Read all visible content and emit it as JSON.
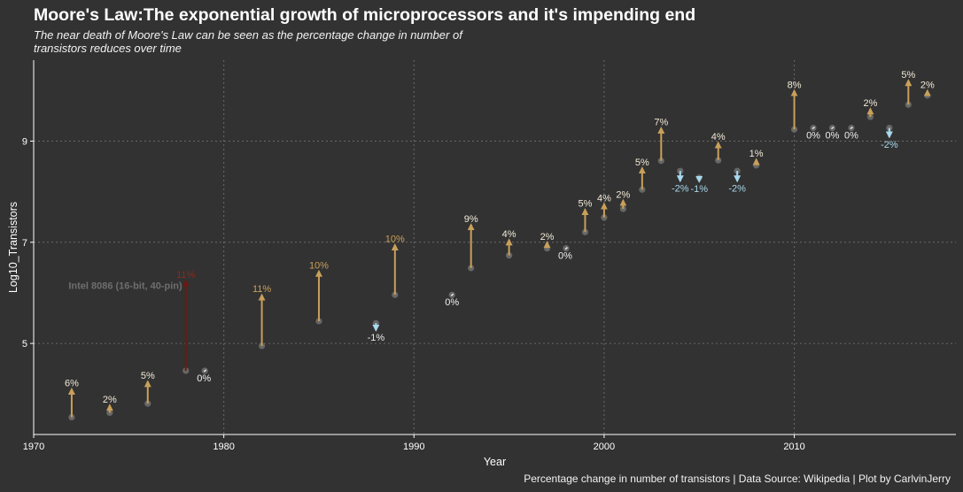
{
  "title": "Moore's Law:The exponential growth of microprocessors and it's impending end",
  "subtitle": "The near death of Moore's Law can be seen as the percentage change in number of transistors reduces over time",
  "caption": "Percentage change in number of transistors | Data Source: Wikipedia | Plot by CarlvinJerry",
  "chart_data": {
    "type": "scatter",
    "xlabel": "Year",
    "ylabel": "Log10_Transistors",
    "xlim": [
      1970,
      2018.5
    ],
    "ylim": [
      3.2,
      10.6
    ],
    "xticks": [
      1970,
      1980,
      1990,
      2000,
      2010
    ],
    "yticks": [
      5,
      7,
      9
    ],
    "grid": true,
    "annotation": {
      "text": "Intel 8086 (16-bit, 40-pin)",
      "x": 1978,
      "y": 6.15
    },
    "colors": {
      "background": "#323232",
      "point": "#666666",
      "increase": "#c8a05a",
      "decrease": "#a8d8ec",
      "intel": "#6b1a10",
      "grid": "#6a6a6a"
    },
    "points": [
      {
        "year": 1972,
        "from": 3.54,
        "to": 4.1,
        "label": "6%"
      },
      {
        "year": 1974,
        "from": 3.63,
        "to": 3.78,
        "label": "2%"
      },
      {
        "year": 1976,
        "from": 3.81,
        "to": 4.25,
        "label": "5%"
      },
      {
        "year": 1978,
        "from": 4.46,
        "to": 6.24,
        "label": "11%"
      },
      {
        "year": 1979,
        "from": 4.46,
        "to": 4.46,
        "label": "0%"
      },
      {
        "year": 1982,
        "from": 4.95,
        "to": 5.96,
        "label": "11%"
      },
      {
        "year": 1985,
        "from": 5.44,
        "to": 6.43,
        "label": "10%"
      },
      {
        "year": 1988,
        "from": 5.4,
        "to": 5.26,
        "label": "-1%"
      },
      {
        "year": 1989,
        "from": 5.96,
        "to": 6.95,
        "label": "10%"
      },
      {
        "year": 1992,
        "from": 5.96,
        "to": 5.96,
        "label": "0%"
      },
      {
        "year": 1993,
        "from": 6.49,
        "to": 7.35,
        "label": "9%"
      },
      {
        "year": 1995,
        "from": 6.74,
        "to": 7.05,
        "label": "4%"
      },
      {
        "year": 1997,
        "from": 6.88,
        "to": 7.0,
        "label": "2%"
      },
      {
        "year": 1998,
        "from": 6.88,
        "to": 6.88,
        "label": "0%"
      },
      {
        "year": 1999,
        "from": 7.2,
        "to": 7.65,
        "label": "5%"
      },
      {
        "year": 2000,
        "from": 7.49,
        "to": 7.76,
        "label": "4%"
      },
      {
        "year": 2001,
        "from": 7.66,
        "to": 7.83,
        "label": "2%"
      },
      {
        "year": 2002,
        "from": 8.04,
        "to": 8.47,
        "label": "5%"
      },
      {
        "year": 2003,
        "from": 8.61,
        "to": 9.26,
        "label": "7%"
      },
      {
        "year": 2004,
        "from": 8.41,
        "to": 8.21,
        "label": "-2%"
      },
      {
        "year": 2005,
        "from": 8.28,
        "to": 8.2,
        "label": "-1%"
      },
      {
        "year": 2006,
        "from": 8.62,
        "to": 8.97,
        "label": "4%"
      },
      {
        "year": 2007,
        "from": 8.41,
        "to": 8.21,
        "label": "-2%"
      },
      {
        "year": 2008,
        "from": 8.52,
        "to": 8.64,
        "label": "1%"
      },
      {
        "year": 2010,
        "from": 9.23,
        "to": 10.0,
        "label": "8%"
      },
      {
        "year": 2011,
        "from": 9.26,
        "to": 9.26,
        "label": "0%"
      },
      {
        "year": 2012,
        "from": 9.26,
        "to": 9.26,
        "label": "0%"
      },
      {
        "year": 2013,
        "from": 9.26,
        "to": 9.26,
        "label": "0%"
      },
      {
        "year": 2014,
        "from": 9.48,
        "to": 9.64,
        "label": "2%"
      },
      {
        "year": 2015,
        "from": 9.26,
        "to": 9.08,
        "label": "-2%"
      },
      {
        "year": 2016,
        "from": 9.72,
        "to": 10.2,
        "label": "5%"
      },
      {
        "year": 2017,
        "from": 9.9,
        "to": 10.0,
        "label": "2%"
      }
    ]
  }
}
